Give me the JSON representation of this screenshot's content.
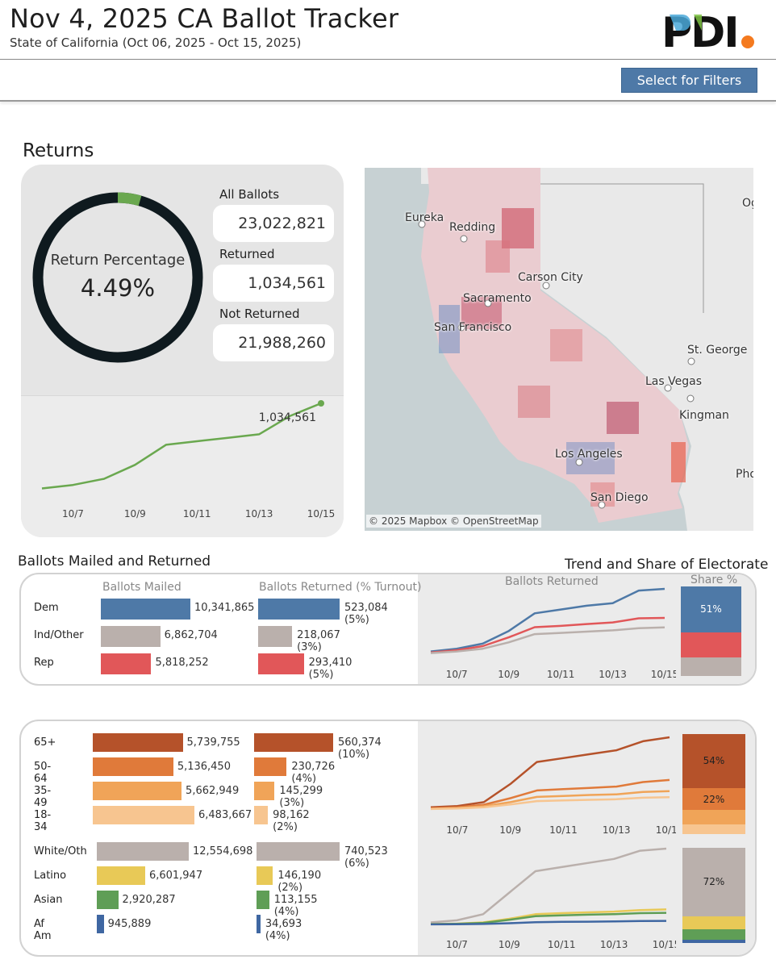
{
  "header": {
    "title": "Nov 4, 2025 CA Ballot Tracker",
    "subtitle": "State of California (Oct 06, 2025 - Oct 15, 2025)",
    "logo_text": "PDI",
    "filter_button": "Select for Filters"
  },
  "returns": {
    "section_title": "Returns",
    "donut_label": "Return Percentage",
    "donut_value": "4.49%",
    "return_fraction": 0.0449,
    "all_ballots_label": "All Ballots",
    "all_ballots": "23,022,821",
    "returned_label": "Returned",
    "returned": "1,034,561",
    "not_returned_label": "Not Returned",
    "not_returned": "21,988,260",
    "trend_end_label": "1,034,561"
  },
  "map": {
    "credit": "© 2025 Mapbox  © OpenStreetMap",
    "labels": {
      "eureka": "Eureka",
      "redding": "Redding",
      "carson": "Carson City",
      "sacramento": "Sacramento",
      "sf": "San Francisco",
      "stgeorge": "St. George",
      "lasvegas": "Las Vegas",
      "kingman": "Kingman",
      "la": "Los Angeles",
      "sandiego": "San Diego",
      "og": "Og",
      "pho": "Pho"
    }
  },
  "party": {
    "section_title": "Ballots Mailed and Returned",
    "trend_title": "Trend and Share of Electorate",
    "mailed_header": "Ballots Mailed",
    "returned_header": "Ballots Returned (% Turnout)",
    "trend_header": "Ballots Returned",
    "share_header": "Share %",
    "rows": [
      {
        "label": "Dem",
        "mailed": "10,341,865",
        "returned": "523,084 (5%)"
      },
      {
        "label": "Ind/Other",
        "mailed": "6,862,704",
        "returned": "218,067 (3%)"
      },
      {
        "label": "Rep",
        "mailed": "5,818,252",
        "returned": "293,410 (5%)"
      }
    ],
    "share_labels": {
      "dem": "51%"
    }
  },
  "age": {
    "rows": [
      {
        "label": "65+",
        "mailed": "5,739,755",
        "returned": "560,374 (10%)"
      },
      {
        "label": "50-64",
        "mailed": "5,136,450",
        "returned": "230,726 (4%)"
      },
      {
        "label": "35-49",
        "mailed": "5,662,949",
        "returned": "145,299 (3%)"
      },
      {
        "label": "18-34",
        "mailed": "6,483,667",
        "returned": "98,162 (2%)"
      }
    ],
    "share_labels": {
      "s65": "54%",
      "s50": "22%"
    }
  },
  "race": {
    "rows": [
      {
        "label": "White/Oth",
        "mailed": "12,554,698",
        "returned": "740,523 (6%)"
      },
      {
        "label": "Latino",
        "mailed": "6,601,947",
        "returned": "146,190 (2%)"
      },
      {
        "label": "Asian",
        "mailed": "2,920,287",
        "returned": "113,155 (4%)"
      },
      {
        "label": "Af Am",
        "mailed": "945,889",
        "returned": "34,693 (4%)"
      }
    ],
    "share_labels": {
      "white": "72%"
    }
  },
  "colors": {
    "dem": "#4e79a7",
    "ind": "#bab0ac",
    "rep": "#e15759",
    "a65": "#b5522a",
    "a50": "#e07a3a",
    "a35": "#f0a458",
    "a18": "#f7c590",
    "white": "#bab0ac",
    "latino": "#e8c957",
    "asian": "#5f9e56",
    "afam": "#3f67a2",
    "trend": "#6aa84f",
    "donut": "#0f1a1f"
  },
  "chart_data": [
    {
      "type": "line",
      "title": "Returns",
      "x": [
        "10/6",
        "10/7",
        "10/8",
        "10/9",
        "10/10",
        "10/11",
        "10/12",
        "10/13",
        "10/14",
        "10/15"
      ],
      "x_ticks": [
        "10/7",
        "10/9",
        "10/11",
        "10/13",
        "10/15"
      ],
      "series": [
        {
          "values": [
            60000,
            100000,
            170000,
            330000,
            560000,
            600000,
            640000,
            680000,
            890000,
            1034561
          ]
        }
      ],
      "end_label": "1,034,561",
      "ylim": [
        0,
        1100000
      ]
    },
    {
      "type": "bar",
      "title": "Ballots Mailed and Returned",
      "categories": [
        "Dem",
        "Ind/Other",
        "Rep"
      ],
      "series": [
        {
          "name": "Ballots Mailed",
          "values": [
            10341865,
            6862704,
            5818252
          ]
        },
        {
          "name": "Ballots Returned (% Turnout)",
          "values": [
            523084,
            218067,
            293410
          ]
        }
      ]
    },
    {
      "type": "line",
      "title": "Ballots Returned",
      "x": [
        "10/6",
        "10/7",
        "10/8",
        "10/9",
        "10/10",
        "10/11",
        "10/12",
        "10/13",
        "10/14",
        "10/15"
      ],
      "x_ticks": [
        "10/7",
        "10/9",
        "10/11",
        "10/13",
        "10/15"
      ],
      "series": [
        {
          "name": "Dem",
          "values": [
            28000,
            50000,
            90000,
            190000,
            330000,
            360000,
            390000,
            410000,
            510000,
            523084
          ]
        },
        {
          "name": "Rep",
          "values": [
            20000,
            38000,
            70000,
            140000,
            220000,
            230000,
            245000,
            258000,
            290000,
            293410
          ]
        },
        {
          "name": "Ind/Other",
          "values": [
            15000,
            28000,
            50000,
            100000,
            165000,
            175000,
            185000,
            195000,
            212000,
            218067
          ]
        }
      ]
    },
    {
      "type": "bar",
      "title": "Share %",
      "categories": [
        "Share of Electorate"
      ],
      "series": [
        {
          "name": "Dem",
          "values": [
            51
          ]
        },
        {
          "name": "Rep",
          "values": [
            28
          ]
        },
        {
          "name": "Ind/Other",
          "values": [
            21
          ]
        }
      ]
    },
    {
      "type": "bar",
      "categories": [
        "65+",
        "50-64",
        "35-49",
        "18-34"
      ],
      "series": [
        {
          "name": "Ballots Mailed",
          "values": [
            5739755,
            5136450,
            5662949,
            6483667
          ]
        },
        {
          "name": "Ballots Returned (% Turnout)",
          "values": [
            560374,
            230726,
            145299,
            98162
          ]
        }
      ]
    },
    {
      "type": "line",
      "x": [
        "10/6",
        "10/7",
        "10/8",
        "10/9",
        "10/10",
        "10/11",
        "10/12",
        "10/13",
        "10/14",
        "10/15"
      ],
      "x_ticks": [
        "10/7",
        "10/9",
        "10/11",
        "10/13",
        "10/15"
      ],
      "series": [
        {
          "name": "65+",
          "values": [
            20000,
            30000,
            60000,
            200000,
            370000,
            400000,
            430000,
            460000,
            530000,
            560374
          ]
        },
        {
          "name": "50-64",
          "values": [
            12000,
            20000,
            40000,
            90000,
            150000,
            160000,
            170000,
            180000,
            215000,
            230726
          ]
        },
        {
          "name": "35-49",
          "values": [
            9000,
            14000,
            28000,
            60000,
            100000,
            108000,
            115000,
            120000,
            138000,
            145299
          ]
        },
        {
          "name": "18-34",
          "values": [
            7000,
            11000,
            20000,
            42000,
            68000,
            73000,
            78000,
            82000,
            94000,
            98162
          ]
        }
      ]
    },
    {
      "type": "bar",
      "categories": [
        "Share of Electorate"
      ],
      "series": [
        {
          "name": "65+",
          "values": [
            54
          ]
        },
        {
          "name": "50-64",
          "values": [
            22
          ]
        },
        {
          "name": "35-49",
          "values": [
            14
          ]
        },
        {
          "name": "18-34",
          "values": [
            10
          ]
        }
      ]
    },
    {
      "type": "bar",
      "categories": [
        "White/Oth",
        "Latino",
        "Asian",
        "Af Am"
      ],
      "series": [
        {
          "name": "Ballots Mailed",
          "values": [
            12554698,
            6601947,
            2920287,
            945889
          ]
        },
        {
          "name": "Ballots Returned (% Turnout)",
          "values": [
            740523,
            146190,
            113155,
            34693
          ]
        }
      ]
    },
    {
      "type": "line",
      "x": [
        "10/6",
        "10/7",
        "10/8",
        "10/9",
        "10/10",
        "10/11",
        "10/12",
        "10/13",
        "10/14",
        "10/15"
      ],
      "x_ticks": [
        "10/7",
        "10/9",
        "10/11",
        "10/13",
        "10/15"
      ],
      "series": [
        {
          "name": "White/Oth",
          "values": [
            20000,
            40000,
            100000,
            310000,
            520000,
            560000,
            600000,
            640000,
            720000,
            740523
          ]
        },
        {
          "name": "Latino",
          "values": [
            4000,
            8000,
            20000,
            55000,
            100000,
            110000,
            118000,
            125000,
            140000,
            146190
          ]
        },
        {
          "name": "Asian",
          "values": [
            3000,
            6000,
            15000,
            45000,
            80000,
            88000,
            95000,
            100000,
            110000,
            113155
          ]
        },
        {
          "name": "Af Am",
          "values": [
            1000,
            2000,
            5000,
            12000,
            22000,
            25000,
            27000,
            29000,
            33000,
            34693
          ]
        }
      ]
    },
    {
      "type": "bar",
      "categories": [
        "Share of Electorate"
      ],
      "series": [
        {
          "name": "White/Oth",
          "values": [
            72
          ]
        },
        {
          "name": "Latino",
          "values": [
            14
          ]
        },
        {
          "name": "Asian",
          "values": [
            11
          ]
        },
        {
          "name": "Af Am",
          "values": [
            3
          ]
        }
      ]
    }
  ]
}
